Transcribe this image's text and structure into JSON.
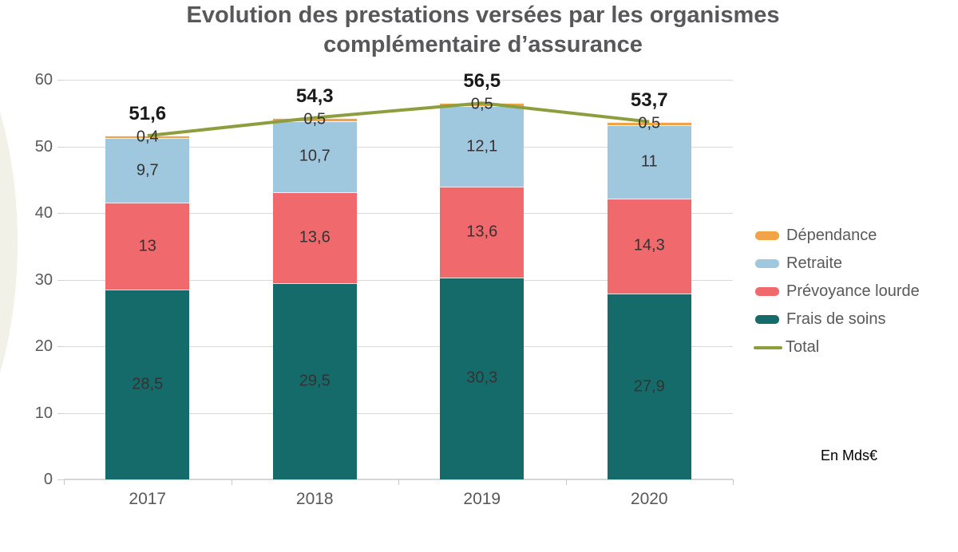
{
  "title": {
    "line1": "Evolution des prestations versées par les organismes",
    "line2": "complémentaire d’assurance"
  },
  "note": "En Mds€",
  "colors": {
    "background": "#ffffff",
    "title_text": "#58585a",
    "axis_text": "#595959",
    "gridline": "#dadada",
    "decor_ellipse": "#f2f1e8"
  },
  "chart_data": {
    "type": "bar",
    "stacked": true,
    "title": "Evolution des prestations versées par les organismes complémentaire d’assurance",
    "categories": [
      "2017",
      "2018",
      "2019",
      "2020"
    ],
    "series": [
      {
        "name": "Frais de soins",
        "color": "#156b69",
        "values": [
          "28,5",
          "29,5",
          "30,3",
          "27,9"
        ]
      },
      {
        "name": "Prévoyance lourde",
        "color": "#f0696c",
        "values": [
          "13",
          "13,6",
          "13,6",
          "14,3"
        ]
      },
      {
        "name": "Retraite",
        "color": "#9fc8df",
        "values": [
          "9,7",
          "10,7",
          "12,1",
          "11"
        ]
      },
      {
        "name": "Dépendance",
        "color": "#f0a445",
        "values": [
          "0,4",
          "0,5",
          "0,5",
          "0,5"
        ]
      }
    ],
    "line_series": {
      "name": "Total",
      "color": "#8e9e3f",
      "values": [
        "51,6",
        "54,3",
        "56,5",
        "53,7"
      ]
    },
    "total_labels": [
      "51,6",
      "54,3",
      "56,5",
      "53,7"
    ],
    "ylim": [
      0,
      60
    ],
    "ytick_step": 10,
    "yticks": [
      "0",
      "10",
      "20",
      "30",
      "40",
      "50",
      "60"
    ],
    "xlabel": "",
    "ylabel": "",
    "unit_note": "En Mds€",
    "grid": true,
    "legend_position": "right",
    "legend_order": [
      "Dépendance",
      "Retraite",
      "Prévoyance lourde",
      "Frais de soins",
      "Total"
    ]
  }
}
